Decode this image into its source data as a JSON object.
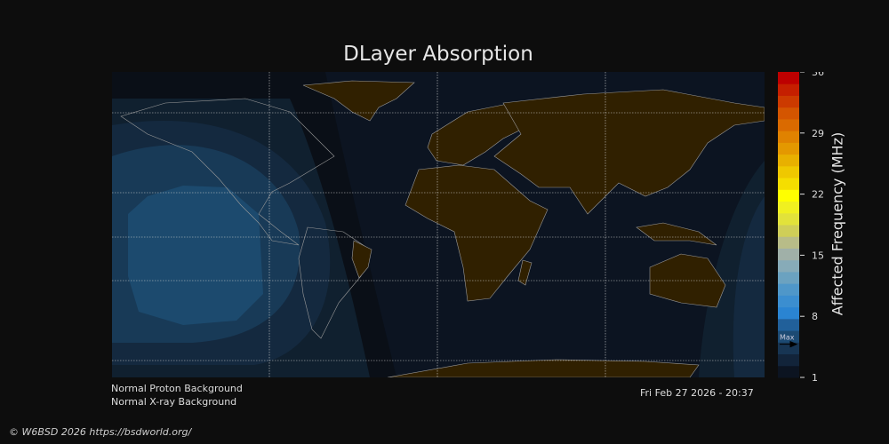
{
  "chart_data": {
    "type": "heatmap",
    "title": "DLayer Absorption",
    "colorbar": {
      "label": "Affected Frequency (MHz)",
      "range": [
        1,
        36
      ],
      "ticks": [
        "1",
        "8",
        "15",
        "22",
        "29",
        "36"
      ],
      "max_marker_label": "Max",
      "max_value": 4.8,
      "colors": [
        "#0c1421",
        "#12243a",
        "#173553",
        "#1c4a73",
        "#21609a",
        "#2a84d2",
        "#3b8ed0",
        "#4f97c9",
        "#6ba2c0",
        "#87abb8",
        "#a0b0a8",
        "#b8bc88",
        "#cfce58",
        "#e2e23a",
        "#f0f020",
        "#ffff00",
        "#f5de00",
        "#efc800",
        "#e8b000",
        "#e49800",
        "#e08200",
        "#da6a00",
        "#d45500",
        "#cc3a00",
        "#c51f00",
        "#bd0000"
      ]
    },
    "series_description": "absorption region centered over eastern Pacific / western Americas (day side)",
    "levels_on_map": {
      "background": "#0c1421",
      "ring1": "#10202f",
      "ring2": "#14293f",
      "ring3": "#183a57",
      "core": "#1c4a6e"
    },
    "land_color": "#302000",
    "grid": true
  },
  "notes": {
    "proton": "Normal Proton Background",
    "xray": "Normal X-ray Background",
    "timestamp": "Fri Feb 27 2026 - 20:37"
  },
  "footer": {
    "copyright": "© W6BSD 2026 https://bsdworld.org/"
  }
}
